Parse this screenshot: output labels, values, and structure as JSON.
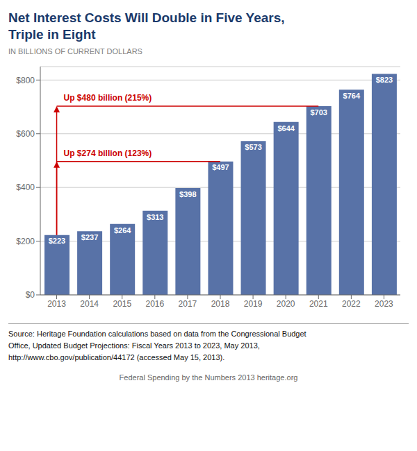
{
  "chart_data": {
    "type": "bar",
    "title": [
      "Net Interest Costs Will Double in Five Years,",
      "Triple in Eight"
    ],
    "subtitle": "IN BILLIONS OF CURRENT DOLLARS",
    "categories": [
      2013,
      2014,
      2015,
      2016,
      2017,
      2018,
      2019,
      2020,
      2021,
      2022,
      2023
    ],
    "values": [
      223,
      237,
      264,
      313,
      398,
      497,
      573,
      644,
      703,
      764,
      823
    ],
    "value_labels": [
      "$223",
      "$237",
      "$264",
      "$313",
      "$398",
      "$497",
      "$573",
      "$644",
      "$703",
      "$764",
      "$823"
    ],
    "data_labels": true,
    "color": "#5872a7",
    "ylim": [
      0,
      850
    ],
    "yticks": [
      {
        "value": 0,
        "label": "$0"
      },
      {
        "value": 200,
        "label": "$200"
      },
      {
        "value": 400,
        "label": "$400"
      },
      {
        "value": 600,
        "label": "$600"
      },
      {
        "value": 800,
        "label": "$800"
      }
    ],
    "grid": true,
    "annotations": [
      {
        "text": "Up $274 billion (123%)",
        "x": 2013,
        "x_end": 2018,
        "y_start": 223,
        "y_end": 497,
        "color": "#cc0000"
      },
      {
        "text": "Up $480 billion (215%)",
        "x": 2013,
        "x_end": 2021,
        "y_start": 223,
        "y_end": 703,
        "color": "#cc0000"
      }
    ],
    "source": [
      "Source: Heritage Foundation calculations based on data from the Congressional Budget",
      "Office, Updated Budget Projections: Fiscal Years 2013 to 2023, May 2013,",
      "http://www.cbo.gov/publication/44172 (accessed May 15, 2013)."
    ],
    "footer": "Federal Spending by the Numbers 2013    heritage.org"
  }
}
